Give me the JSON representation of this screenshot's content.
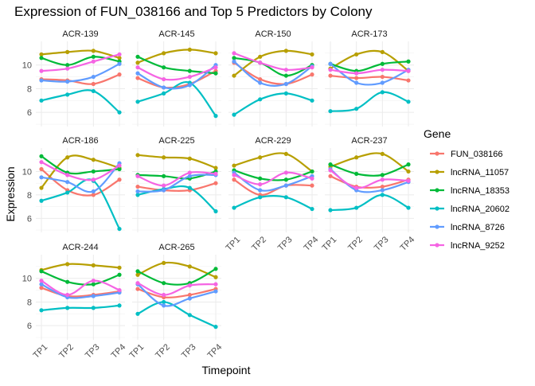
{
  "chart_data": {
    "type": "line",
    "title": "Expression of FUN_038166 and Top 5 Predictors by Colony",
    "xlabel": "Timepoint",
    "ylabel": "Expression",
    "x_categories": [
      "TP1",
      "TP2",
      "TP3",
      "TP4"
    ],
    "y_ticks": [
      6,
      8,
      10
    ],
    "ylim": [
      4.8,
      12.0
    ],
    "grid": true,
    "legend": {
      "title": "Gene",
      "placement": "right",
      "entries": [
        {
          "name": "FUN_038166",
          "color": "#F8766D"
        },
        {
          "name": "lncRNA_11057",
          "color": "#B79F00"
        },
        {
          "name": "lncRNA_18353",
          "color": "#00BA38"
        },
        {
          "name": "lncRNA_20602",
          "color": "#00BFC4"
        },
        {
          "name": "lncRNA_8726",
          "color": "#619CFF"
        },
        {
          "name": "lncRNA_9252",
          "color": "#F564E3"
        }
      ]
    },
    "panels": [
      {
        "colony": "ACR-139",
        "series": [
          {
            "gene": "FUN_038166",
            "values": [
              8.8,
              8.7,
              8.4,
              9.2
            ]
          },
          {
            "gene": "lncRNA_11057",
            "values": [
              10.9,
              11.1,
              11.2,
              10.6
            ]
          },
          {
            "gene": "lncRNA_18353",
            "values": [
              10.6,
              10.0,
              10.7,
              10.3
            ]
          },
          {
            "gene": "lncRNA_20602",
            "values": [
              7.0,
              7.5,
              7.8,
              6.0
            ]
          },
          {
            "gene": "lncRNA_8726",
            "values": [
              8.7,
              8.6,
              9.0,
              10.1
            ]
          },
          {
            "gene": "lncRNA_9252",
            "values": [
              9.5,
              9.7,
              10.3,
              10.9
            ]
          }
        ]
      },
      {
        "colony": "ACR-145",
        "series": [
          {
            "gene": "FUN_038166",
            "values": [
              8.9,
              8.1,
              8.4,
              9.5
            ]
          },
          {
            "gene": "lncRNA_11057",
            "values": [
              10.2,
              11.0,
              11.3,
              11.0
            ]
          },
          {
            "gene": "lncRNA_18353",
            "values": [
              10.7,
              9.8,
              9.5,
              9.3
            ]
          },
          {
            "gene": "lncRNA_20602",
            "values": [
              6.9,
              7.6,
              8.5,
              5.7
            ]
          },
          {
            "gene": "lncRNA_8726",
            "values": [
              9.3,
              8.1,
              8.3,
              10.0
            ]
          },
          {
            "gene": "lncRNA_9252",
            "values": [
              9.8,
              8.8,
              9.0,
              9.8
            ]
          }
        ]
      },
      {
        "colony": "ACR-150",
        "series": [
          {
            "gene": "FUN_038166",
            "values": [
              10.2,
              8.8,
              8.4,
              9.2
            ]
          },
          {
            "gene": "lncRNA_11057",
            "values": [
              9.1,
              10.7,
              11.2,
              10.9
            ]
          },
          {
            "gene": "lncRNA_18353",
            "values": [
              10.6,
              10.2,
              9.1,
              10.0
            ]
          },
          {
            "gene": "lncRNA_20602",
            "values": [
              5.8,
              7.1,
              7.6,
              7.0
            ]
          },
          {
            "gene": "lncRNA_8726",
            "values": [
              10.3,
              8.5,
              8.4,
              9.9
            ]
          },
          {
            "gene": "lncRNA_9252",
            "values": [
              11.0,
              10.2,
              9.6,
              9.8
            ]
          }
        ]
      },
      {
        "colony": "ACR-173",
        "series": [
          {
            "gene": "FUN_038166",
            "values": [
              9.1,
              8.9,
              9.0,
              8.7
            ]
          },
          {
            "gene": "lncRNA_11057",
            "values": [
              9.7,
              10.9,
              11.1,
              9.5
            ]
          },
          {
            "gene": "lncRNA_18353",
            "values": [
              10.1,
              9.5,
              10.1,
              10.3
            ]
          },
          {
            "gene": "lncRNA_20602",
            "values": [
              6.1,
              6.3,
              7.7,
              6.9
            ]
          },
          {
            "gene": "lncRNA_8726",
            "values": [
              10.1,
              8.5,
              8.5,
              9.6
            ]
          },
          {
            "gene": "lncRNA_9252",
            "values": [
              9.6,
              9.3,
              9.6,
              9.5
            ]
          }
        ]
      },
      {
        "colony": "ACR-186",
        "series": [
          {
            "gene": "FUN_038166",
            "values": [
              10.2,
              8.4,
              8.0,
              9.3
            ]
          },
          {
            "gene": "lncRNA_11057",
            "values": [
              8.6,
              11.2,
              11.0,
              10.3
            ]
          },
          {
            "gene": "lncRNA_18353",
            "values": [
              11.3,
              9.9,
              10.0,
              10.2
            ]
          },
          {
            "gene": "lncRNA_20602",
            "values": [
              7.5,
              8.2,
              9.2,
              5.1
            ]
          },
          {
            "gene": "lncRNA_8726",
            "values": [
              9.5,
              9.1,
              8.3,
              10.7
            ]
          },
          {
            "gene": "lncRNA_9252",
            "values": [
              10.8,
              9.7,
              9.3,
              10.5
            ]
          }
        ]
      },
      {
        "colony": "ACR-225",
        "series": [
          {
            "gene": "FUN_038166",
            "values": [
              8.7,
              8.4,
              8.4,
              9.0
            ]
          },
          {
            "gene": "lncRNA_11057",
            "values": [
              11.4,
              11.2,
              11.1,
              10.3
            ]
          },
          {
            "gene": "lncRNA_18353",
            "values": [
              9.7,
              9.6,
              9.4,
              10.0
            ]
          },
          {
            "gene": "lncRNA_20602",
            "values": [
              8.0,
              8.5,
              8.6,
              6.6
            ]
          },
          {
            "gene": "lncRNA_8726",
            "values": [
              8.3,
              8.4,
              9.6,
              9.7
            ]
          },
          {
            "gene": "lncRNA_9252",
            "values": [
              9.6,
              8.8,
              9.9,
              9.8
            ]
          }
        ]
      },
      {
        "colony": "ACR-229",
        "series": [
          {
            "gene": "FUN_038166",
            "values": [
              9.3,
              8.0,
              8.8,
              8.8
            ]
          },
          {
            "gene": "lncRNA_11057",
            "values": [
              10.5,
              11.2,
              11.5,
              10.0
            ]
          },
          {
            "gene": "lncRNA_18353",
            "values": [
              10.1,
              9.4,
              9.3,
              10.0
            ]
          },
          {
            "gene": "lncRNA_20602",
            "values": [
              6.9,
              7.8,
              7.8,
              6.8
            ]
          },
          {
            "gene": "lncRNA_8726",
            "values": [
              9.9,
              8.4,
              8.8,
              9.6
            ]
          },
          {
            "gene": "lncRNA_9252",
            "values": [
              9.7,
              8.9,
              9.9,
              9.4
            ]
          }
        ]
      },
      {
        "colony": "ACR-237",
        "series": [
          {
            "gene": "FUN_038166",
            "values": [
              9.6,
              8.7,
              8.7,
              9.3
            ]
          },
          {
            "gene": "lncRNA_11057",
            "values": [
              10.4,
              11.2,
              11.5,
              10.0
            ]
          },
          {
            "gene": "lncRNA_18353",
            "values": [
              10.6,
              9.8,
              9.7,
              10.6
            ]
          },
          {
            "gene": "lncRNA_20602",
            "values": [
              6.7,
              6.9,
              8.0,
              6.9
            ]
          },
          {
            "gene": "lncRNA_8726",
            "values": [
              10.2,
              8.4,
              8.4,
              9.1
            ]
          },
          {
            "gene": "lncRNA_9252",
            "values": [
              10.1,
              8.6,
              9.3,
              9.2
            ]
          }
        ]
      },
      {
        "colony": "ACR-244",
        "series": [
          {
            "gene": "FUN_038166",
            "values": [
              9.2,
              8.5,
              8.6,
              8.9
            ]
          },
          {
            "gene": "lncRNA_11057",
            "values": [
              10.7,
              11.2,
              11.1,
              10.9
            ]
          },
          {
            "gene": "lncRNA_18353",
            "values": [
              10.6,
              9.7,
              9.5,
              10.3
            ]
          },
          {
            "gene": "lncRNA_20602",
            "values": [
              7.3,
              7.5,
              7.5,
              7.7
            ]
          },
          {
            "gene": "lncRNA_8726",
            "values": [
              9.5,
              8.4,
              8.5,
              8.8
            ]
          },
          {
            "gene": "lncRNA_9252",
            "values": [
              9.8,
              8.6,
              9.8,
              9.0
            ]
          }
        ]
      },
      {
        "colony": "ACR-265",
        "series": [
          {
            "gene": "FUN_038166",
            "values": [
              9.1,
              8.4,
              8.6,
              9.1
            ]
          },
          {
            "gene": "lncRNA_11057",
            "values": [
              10.3,
              11.3,
              11.0,
              10.1
            ]
          },
          {
            "gene": "lncRNA_18353",
            "values": [
              10.6,
              9.6,
              9.6,
              10.8
            ]
          },
          {
            "gene": "lncRNA_20602",
            "values": [
              7.0,
              8.0,
              6.9,
              5.9
            ]
          },
          {
            "gene": "lncRNA_8726",
            "values": [
              9.5,
              7.7,
              8.3,
              8.9
            ]
          },
          {
            "gene": "lncRNA_9252",
            "values": [
              9.6,
              8.6,
              9.4,
              9.5
            ]
          }
        ]
      }
    ]
  }
}
